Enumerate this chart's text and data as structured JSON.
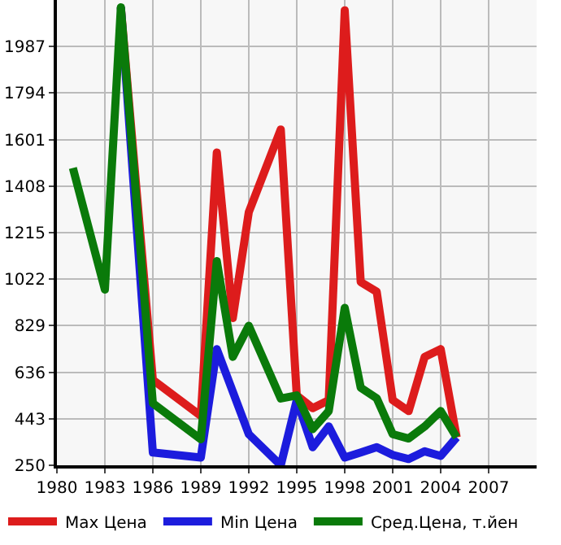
{
  "chart_data": {
    "type": "line",
    "xlim": [
      1980,
      2010
    ],
    "xticks": [
      1980,
      1983,
      1986,
      1989,
      1992,
      1995,
      1998,
      2001,
      2004,
      2007
    ],
    "ylim": [
      250,
      2180
    ],
    "yticks": [
      250,
      443,
      636,
      829,
      1022,
      1215,
      1408,
      1601,
      1794,
      1987
    ],
    "grid": true,
    "legend": "bottom",
    "line_style": "solid",
    "marker": "none",
    "series": [
      {
        "name": "Max Цена",
        "color": "#dd1c1c",
        "x": [
          1984,
          1986,
          1989,
          1990,
          1991,
          1992,
          1994,
          1995,
          1996,
          1997,
          1998,
          1999,
          2000,
          2001,
          2002,
          2003,
          2004,
          2005
        ],
        "values": [
          2150,
          604,
          455,
          1547,
          861,
          1300,
          1643,
          540,
          487,
          520,
          2137,
          1010,
          970,
          520,
          475,
          700,
          732,
          366
        ]
      },
      {
        "name": "Min Цена",
        "color": "#1c1cdd",
        "x": [
          1984,
          1986,
          1989,
          1990,
          1992,
          1994,
          1995,
          1996,
          1997,
          1998,
          1999,
          2000,
          2001,
          2002,
          2003,
          2004,
          2005
        ],
        "values": [
          2150,
          303,
          282,
          732,
          379,
          250,
          520,
          325,
          411,
          282,
          303,
          325,
          293,
          276,
          308,
          289,
          366
        ]
      },
      {
        "name": "Сред.Цена, т.йен",
        "color": "#0a7a0a",
        "x": [
          1981,
          1983,
          1984,
          1986,
          1989,
          1990,
          1991,
          1992,
          1994,
          1995,
          1996,
          1997,
          1998,
          1999,
          2000,
          2001,
          2002,
          2003,
          2004,
          2005
        ],
        "values": [
          1483,
          979,
          2150,
          507,
          358,
          1097,
          700,
          829,
          527,
          540,
          400,
          475,
          903,
          572,
          528,
          379,
          361,
          411,
          475,
          366
        ]
      }
    ]
  }
}
